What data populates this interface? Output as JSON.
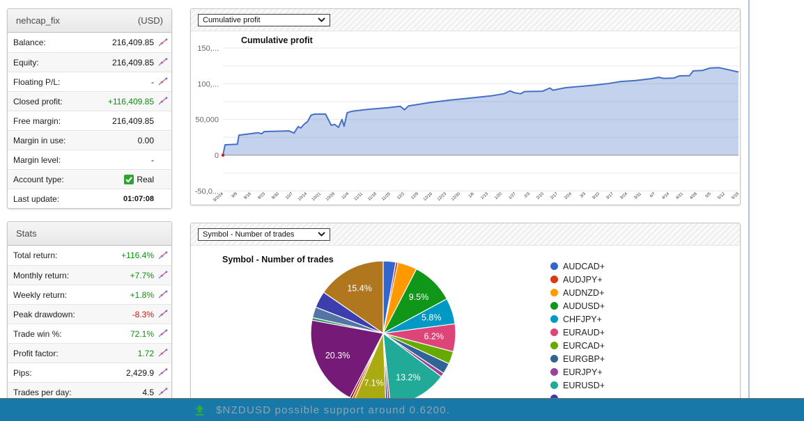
{
  "account_panel": {
    "name": "nehcap_fix",
    "currency": "(USD)",
    "rows": [
      {
        "label": "Balance:",
        "value": "216,409.85",
        "color": "default",
        "icon": true
      },
      {
        "label": "Equity:",
        "value": "216,409.85",
        "color": "default",
        "icon": true
      },
      {
        "label": "Floating P/L:",
        "value": "-",
        "color": "default",
        "icon": true
      },
      {
        "label": "Closed profit:",
        "value": "+116,409.85",
        "color": "green",
        "icon": true
      },
      {
        "label": "Free margin:",
        "value": "216,409.85",
        "color": "default",
        "icon": false
      },
      {
        "label": "Margin in use:",
        "value": "0.00",
        "color": "default",
        "icon": false
      },
      {
        "label": "Margin level:",
        "value": "-",
        "color": "default",
        "icon": false
      },
      {
        "label": "Account type:",
        "value": "Real",
        "color": "default",
        "icon": false,
        "checkbox": true
      },
      {
        "label": "Last update:",
        "value": "01:07:08",
        "color": "default",
        "icon": false,
        "bold_small": true
      }
    ]
  },
  "stats_panel": {
    "title": "Stats",
    "rows": [
      {
        "label": "Total return:",
        "value": "+116.4%",
        "color": "green",
        "icon": true
      },
      {
        "label": "Monthly return:",
        "value": "+7.7%",
        "color": "green",
        "icon": true
      },
      {
        "label": "Weekly return:",
        "value": "+1.8%",
        "color": "green",
        "icon": true
      },
      {
        "label": "Peak drawdown:",
        "value": "-8.3%",
        "color": "red",
        "icon": true
      },
      {
        "label": "Trade win %:",
        "value": "72.1%",
        "color": "green",
        "icon": true
      },
      {
        "label": "Profit factor:",
        "value": "1.72",
        "color": "green",
        "icon": true
      },
      {
        "label": "Pips:",
        "value": "2,429.9",
        "color": "default",
        "icon": true
      },
      {
        "label": "Trades per day:",
        "value": "4.5",
        "color": "default",
        "icon": true
      }
    ]
  },
  "profit_chart": {
    "dropdown": "Cumulative profit",
    "title": "Cumulative profit"
  },
  "pie_chart": {
    "dropdown": "Symbol - Number of trades",
    "title": "Symbol - Number of trades"
  },
  "ticker": {
    "text": "$NZDUSD possible support around 0.6200."
  },
  "colors": {
    "banner_bg": "#1878a8",
    "banner_text": "#8ea4b3",
    "divider": "#a9c5e0",
    "positive": "#0a8f0a",
    "negative": "#cc1111",
    "chart_line": "#4470c4",
    "chart_fill": "rgba(79,117,200,0.33)",
    "checkbox_green": "#2fa32f",
    "ticker_arrow_green": "#2ba84a"
  },
  "chart_data": [
    {
      "type": "area",
      "title": "Cumulative profit",
      "ylabel": "",
      "xlabel": "",
      "ylim": [
        -50000,
        150000
      ],
      "grid_step": 25000,
      "yticks": [
        {
          "v": 150000,
          "label": "150,..."
        },
        {
          "v": 100000,
          "label": "100,..."
        },
        {
          "v": 50000,
          "label": "50,000"
        },
        {
          "v": 0,
          "label": "0"
        },
        {
          "v": -50000,
          "label": "-50,0..."
        }
      ],
      "xticks": [
        "9/2/24",
        "9/9",
        "9/16",
        "9/23",
        "9/30",
        "10/7",
        "10/14",
        "10/21",
        "10/28",
        "11/4",
        "11/11",
        "11/18",
        "11/25",
        "12/2",
        "12/9",
        "12/16",
        "12/23",
        "12/30",
        "1/6",
        "1/13",
        "1/20",
        "1/27",
        "2/3",
        "2/10",
        "2/17",
        "2/24",
        "3/3",
        "3/10",
        "3/17",
        "3/24",
        "3/31",
        "4/7",
        "4/14",
        "4/21",
        "4/28",
        "5/5",
        "5/12",
        "5/19"
      ],
      "series": [
        {
          "name": "Cumulative profit",
          "points": [
            [
              0.0,
              0
            ],
            [
              0.004,
              14500
            ],
            [
              0.028,
              15300
            ],
            [
              0.031,
              28000
            ],
            [
              0.068,
              31500
            ],
            [
              0.075,
              30000
            ],
            [
              0.08,
              33000
            ],
            [
              0.128,
              34000
            ],
            [
              0.138,
              31000
            ],
            [
              0.146,
              40000
            ],
            [
              0.151,
              38000
            ],
            [
              0.157,
              43000
            ],
            [
              0.164,
              47000
            ],
            [
              0.171,
              56000
            ],
            [
              0.178,
              57500
            ],
            [
              0.199,
              57500
            ],
            [
              0.205,
              49000
            ],
            [
              0.21,
              42000
            ],
            [
              0.217,
              43000
            ],
            [
              0.224,
              39000
            ],
            [
              0.231,
              50000
            ],
            [
              0.235,
              40500
            ],
            [
              0.241,
              59500
            ],
            [
              0.25,
              61500
            ],
            [
              0.28,
              64000
            ],
            [
              0.32,
              66500
            ],
            [
              0.344,
              68500
            ],
            [
              0.352,
              63500
            ],
            [
              0.36,
              69000
            ],
            [
              0.4,
              73500
            ],
            [
              0.44,
              77000
            ],
            [
              0.48,
              80000
            ],
            [
              0.52,
              83000
            ],
            [
              0.545,
              86000
            ],
            [
              0.557,
              90000
            ],
            [
              0.565,
              87500
            ],
            [
              0.577,
              86000
            ],
            [
              0.585,
              89000
            ],
            [
              0.62,
              89500
            ],
            [
              0.634,
              94000
            ],
            [
              0.64,
              91000
            ],
            [
              0.665,
              94500
            ],
            [
              0.69,
              96000
            ],
            [
              0.72,
              98000
            ],
            [
              0.745,
              100000
            ],
            [
              0.77,
              103000
            ],
            [
              0.8,
              104500
            ],
            [
              0.83,
              107000
            ],
            [
              0.845,
              109000
            ],
            [
              0.855,
              107500
            ],
            [
              0.875,
              108000
            ],
            [
              0.885,
              111000
            ],
            [
              0.905,
              111300
            ],
            [
              0.912,
              118000
            ],
            [
              0.93,
              118500
            ],
            [
              0.945,
              122000
            ],
            [
              0.962,
              122500
            ],
            [
              0.975,
              120500
            ],
            [
              1.0,
              116410
            ]
          ]
        }
      ],
      "start_marker_color": "#cc2200"
    },
    {
      "type": "pie",
      "title": "Symbol - Number of trades",
      "legend_position": "right",
      "slices": [
        {
          "label": "AUDCAD+",
          "value": 2.8,
          "color": "#3366CC"
        },
        {
          "label": "AUDJPY+",
          "value": 0.5,
          "color": "#DC3912"
        },
        {
          "label": "AUDNZD+",
          "value": 4.3,
          "color": "#FF9900"
        },
        {
          "label": "AUDUSD+",
          "value": 9.5,
          "color": "#109618",
          "pct": "9.5%"
        },
        {
          "label": "CHFJPY+",
          "value": 5.8,
          "color": "#0099C6",
          "pct": "5.8%"
        },
        {
          "label": "EURAUD+",
          "value": 6.2,
          "color": "#DD4477",
          "pct": "6.2%"
        },
        {
          "label": "EURCAD+",
          "value": 2.8,
          "color": "#66AA00"
        },
        {
          "label": "EURGBP+",
          "value": 2.4,
          "color": "#316395"
        },
        {
          "label": "EURJPY+",
          "value": 0.9,
          "color": "#994499"
        },
        {
          "label": "EURUSD+",
          "value": 13.2,
          "color": "#22AA99",
          "pct": "13.2%"
        },
        {
          "label": "",
          "value": 0.5,
          "color": "#B82E2E"
        },
        {
          "label": "",
          "value": 0.5,
          "color": "#3B3EAC"
        },
        {
          "label": "",
          "value": 7.1,
          "color": "#AAAA11",
          "pct": "7.1%"
        },
        {
          "label": "",
          "value": 0.6,
          "color": "#E67300"
        },
        {
          "label": "",
          "value": 0.5,
          "color": "#8B0707"
        },
        {
          "label": "",
          "value": 20.3,
          "color": "#761A78",
          "pct": "20.3%"
        },
        {
          "label": "",
          "value": 0.6,
          "color": "#329262"
        },
        {
          "label": "",
          "value": 2.4,
          "color": "#5574A6"
        },
        {
          "label": "",
          "value": 3.7,
          "color": "#3B3EAC"
        },
        {
          "label": "",
          "value": 15.4,
          "color": "#B0771E",
          "pct": "15.4%"
        }
      ],
      "legend_overflow_bullet_color": "#3B3EAC"
    }
  ]
}
